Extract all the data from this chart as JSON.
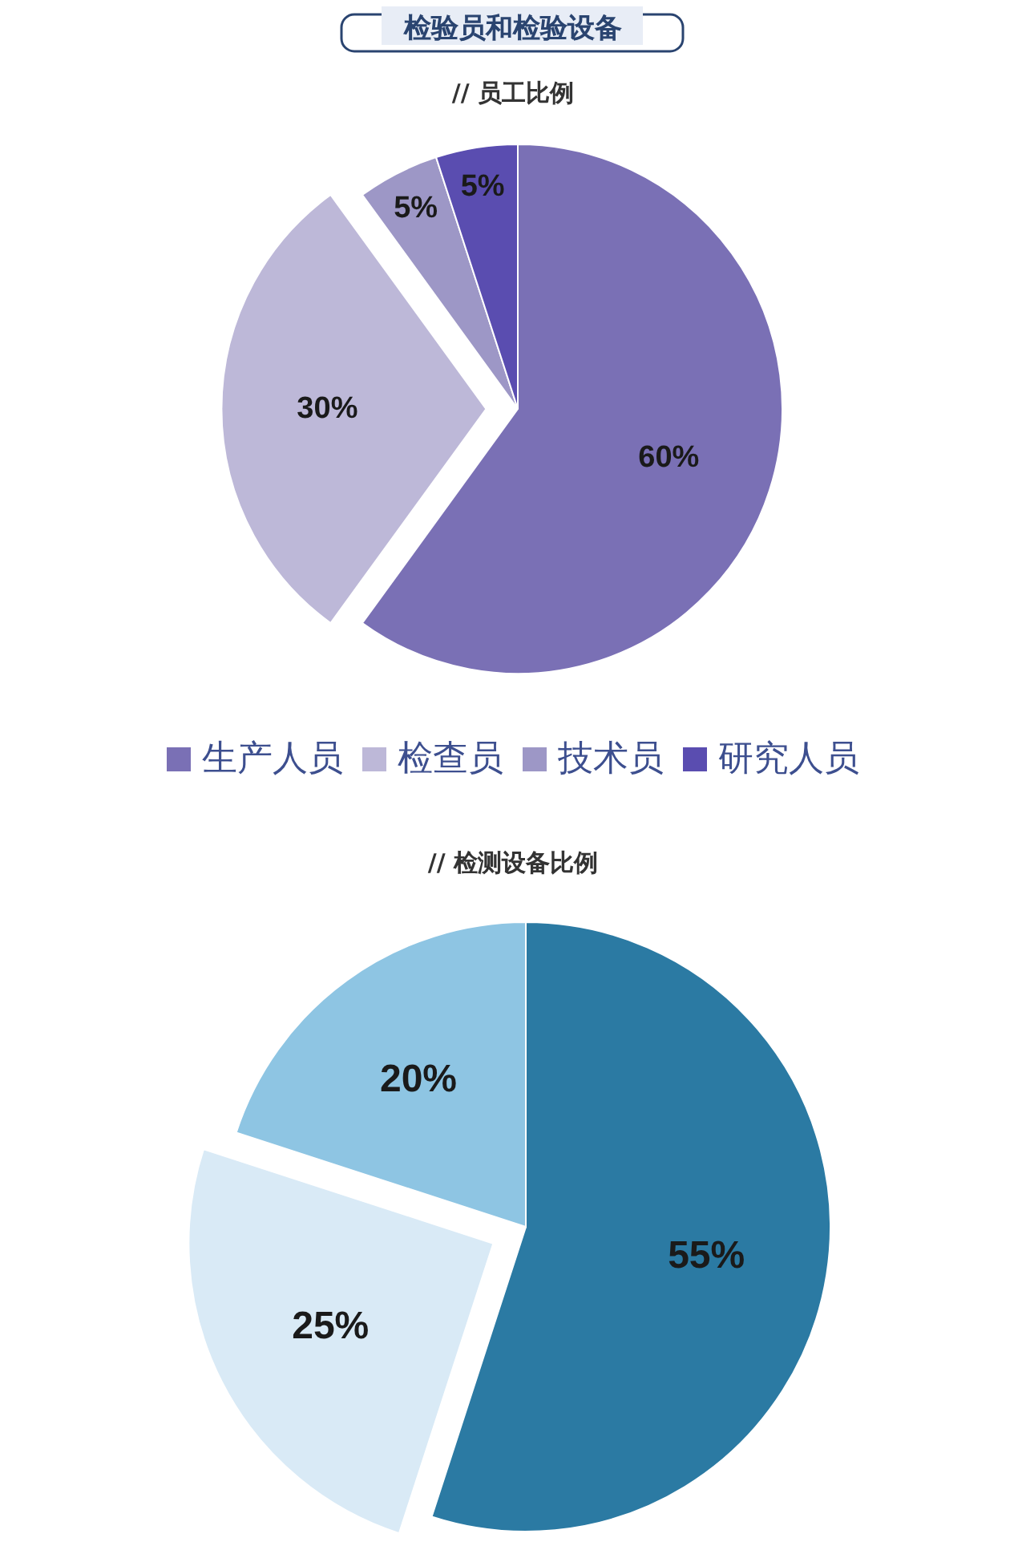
{
  "chart_data": [
    {
      "type": "pie",
      "title": "检验员和检验设备",
      "subtitle": "// 员工比例",
      "categories": [
        "生产人员",
        "检查员",
        "技术员",
        "研究人员"
      ],
      "values": [
        60,
        30,
        5,
        5
      ],
      "colors": [
        "#7a70b5",
        "#bdb8d8",
        "#9d97c6",
        "#5a4db0"
      ],
      "value_labels": [
        "60%",
        "30%",
        "5%",
        "5%"
      ],
      "legend": "bottom"
    },
    {
      "type": "pie",
      "title": "// 检测设备比例",
      "categories": [
        null,
        null,
        null
      ],
      "values": [
        55,
        25,
        20
      ],
      "colors": [
        "#2b7aa3",
        "#d9eaf6",
        "#8ec5e3"
      ],
      "value_labels": [
        "55%",
        "25%",
        "20%"
      ]
    }
  ]
}
